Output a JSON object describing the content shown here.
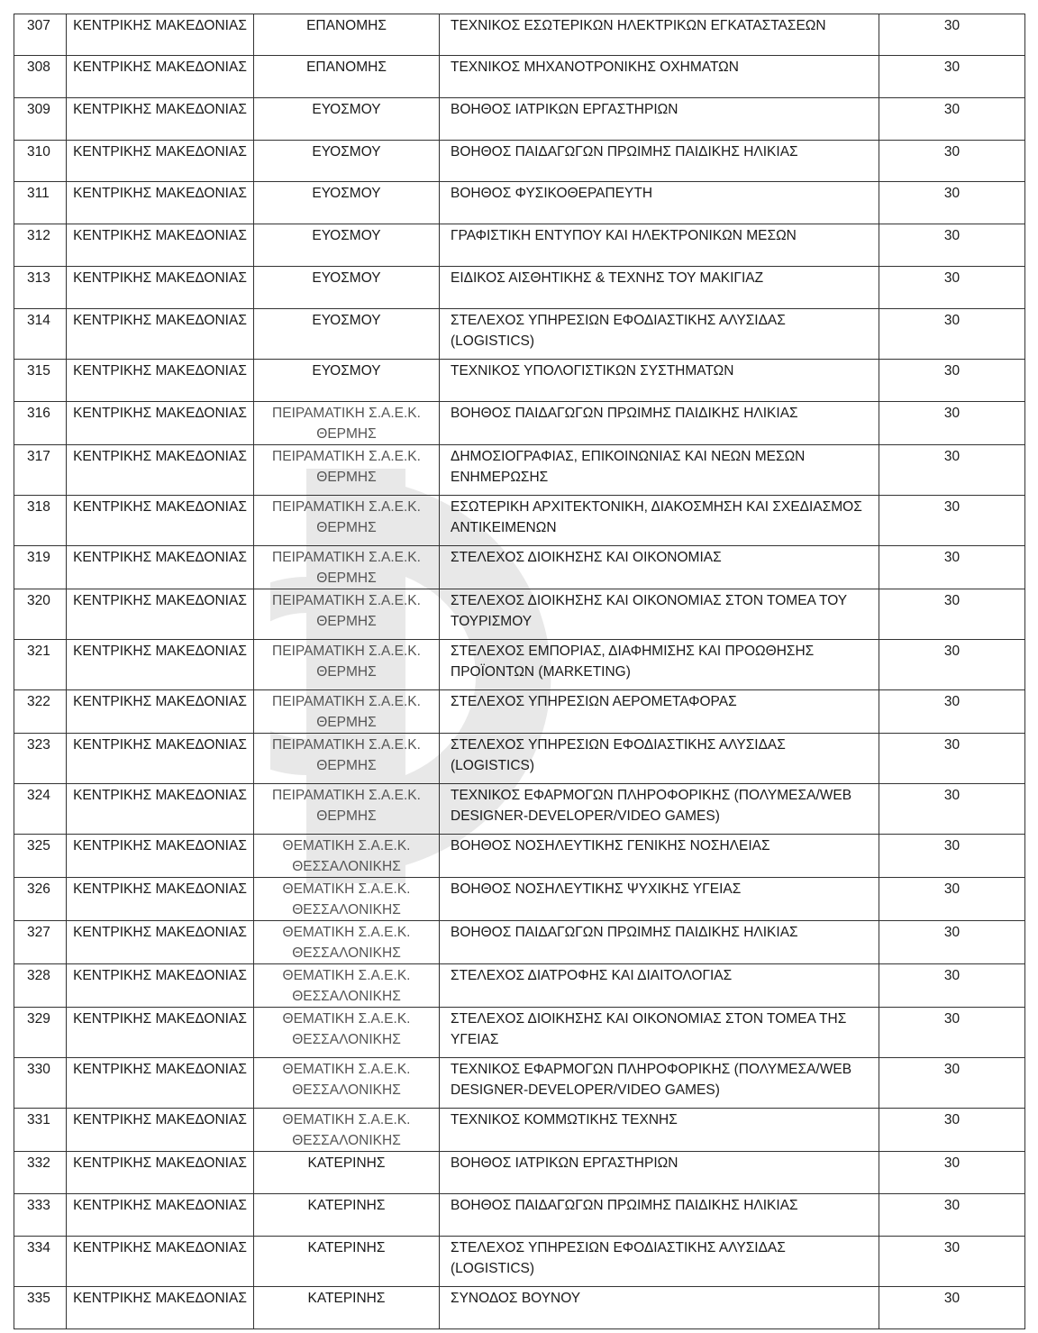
{
  "watermark": {
    "logo": "Φ",
    "color": "#9a9a9a"
  },
  "table": {
    "rows": [
      {
        "no": "307",
        "region": "ΚΕΝΤΡΙΚΗΣ ΜΑΚΕΔΟΝΙΑΣ",
        "school": "ΕΠΑΝΟΜΗΣ",
        "specialty": "ΤΕΧΝΙΚΟΣ ΕΣΩΤΕΡΙΚΩΝ ΗΛΕΚΤΡΙΚΩΝ ΕΓΚΑΤΑΣΤΑΣΕΩΝ",
        "seats": "30"
      },
      {
        "no": "308",
        "region": "ΚΕΝΤΡΙΚΗΣ ΜΑΚΕΔΟΝΙΑΣ",
        "school": "ΕΠΑΝΟΜΗΣ",
        "specialty": "ΤΕΧΝΙΚΟΣ ΜΗΧΑΝΟΤΡΟΝΙΚΗΣ ΟΧΗΜΑΤΩΝ",
        "seats": "30"
      },
      {
        "no": "309",
        "region": "ΚΕΝΤΡΙΚΗΣ ΜΑΚΕΔΟΝΙΑΣ",
        "school": "ΕΥΟΣΜΟΥ",
        "specialty": "ΒΟΗΘΟΣ ΙΑΤΡΙΚΩΝ ΕΡΓΑΣΤΗΡΙΩΝ",
        "seats": "30"
      },
      {
        "no": "310",
        "region": "ΚΕΝΤΡΙΚΗΣ ΜΑΚΕΔΟΝΙΑΣ",
        "school": "ΕΥΟΣΜΟΥ",
        "specialty": "ΒΟΗΘΟΣ ΠΑΙΔΑΓΩΓΩΝ ΠΡΩΙΜΗΣ ΠΑΙΔΙΚΗΣ ΗΛΙΚΙΑΣ",
        "seats": "30"
      },
      {
        "no": "311",
        "region": "ΚΕΝΤΡΙΚΗΣ ΜΑΚΕΔΟΝΙΑΣ",
        "school": "ΕΥΟΣΜΟΥ",
        "specialty": "ΒΟΗΘΟΣ ΦΥΣΙΚΟΘΕΡΑΠΕΥΤΗ",
        "seats": "30"
      },
      {
        "no": "312",
        "region": "ΚΕΝΤΡΙΚΗΣ ΜΑΚΕΔΟΝΙΑΣ",
        "school": "ΕΥΟΣΜΟΥ",
        "specialty": "ΓΡΑΦΙΣΤΙΚΗ ΕΝΤΥΠΟΥ ΚΑΙ ΗΛΕΚΤΡΟΝΙΚΩΝ ΜΕΣΩΝ",
        "seats": "30"
      },
      {
        "no": "313",
        "region": "ΚΕΝΤΡΙΚΗΣ ΜΑΚΕΔΟΝΙΑΣ",
        "school": "ΕΥΟΣΜΟΥ",
        "specialty": "ΕΙΔΙΚΟΣ ΑΙΣΘΗΤΙΚΗΣ & ΤΕΧΝΗΣ ΤΟΥ ΜΑΚΙΓΙΑΖ",
        "seats": "30"
      },
      {
        "no": "314",
        "region": "ΚΕΝΤΡΙΚΗΣ ΜΑΚΕΔΟΝΙΑΣ",
        "school": "ΕΥΟΣΜΟΥ",
        "specialty": "ΣΤΕΛΕΧΟΣ ΥΠΗΡΕΣΙΩΝ ΕΦΟΔΙΑΣΤΙΚΗΣ ΑΛΥΣΙΔΑΣ (LOGISTICS)",
        "seats": "30"
      },
      {
        "no": "315",
        "region": "ΚΕΝΤΡΙΚΗΣ ΜΑΚΕΔΟΝΙΑΣ",
        "school": "ΕΥΟΣΜΟΥ",
        "specialty": "ΤΕΧΝΙΚΟΣ ΥΠΟΛΟΓΙΣΤΙΚΩΝ ΣΥΣΤΗΜΑΤΩΝ",
        "seats": "30"
      },
      {
        "no": "316",
        "region": "ΚΕΝΤΡΙΚΗΣ ΜΑΚΕΔΟΝΙΑΣ",
        "school": "ΠΕΙΡΑΜΑΤΙΚΗ Σ.Α.Ε.Κ. ΘΕΡΜΗΣ",
        "specialty": "ΒΟΗΘΟΣ ΠΑΙΔΑΓΩΓΩΝ ΠΡΩΙΜΗΣ ΠΑΙΔΙΚΗΣ ΗΛΙΚΙΑΣ",
        "seats": "30"
      },
      {
        "no": "317",
        "region": "ΚΕΝΤΡΙΚΗΣ ΜΑΚΕΔΟΝΙΑΣ",
        "school": "ΠΕΙΡΑΜΑΤΙΚΗ Σ.Α.Ε.Κ. ΘΕΡΜΗΣ",
        "specialty": "ΔΗΜΟΣΙΟΓΡΑΦΙΑΣ, ΕΠΙΚΟΙΝΩΝΙΑΣ ΚΑΙ ΝΕΩΝ ΜΕΣΩΝ ΕΝΗΜΕΡΩΣΗΣ",
        "seats": "30"
      },
      {
        "no": "318",
        "region": "ΚΕΝΤΡΙΚΗΣ ΜΑΚΕΔΟΝΙΑΣ",
        "school": "ΠΕΙΡΑΜΑΤΙΚΗ Σ.Α.Ε.Κ. ΘΕΡΜΗΣ",
        "specialty": "ΕΣΩΤΕΡΙΚΗ ΑΡΧΙΤΕΚΤΟΝΙΚΗ, ΔΙΑΚΟΣΜΗΣΗ ΚΑΙ ΣΧΕΔΙΑΣΜΟΣ ΑΝΤΙΚΕΙΜΕΝΩΝ",
        "seats": "30"
      },
      {
        "no": "319",
        "region": "ΚΕΝΤΡΙΚΗΣ ΜΑΚΕΔΟΝΙΑΣ",
        "school": "ΠΕΙΡΑΜΑΤΙΚΗ Σ.Α.Ε.Κ. ΘΕΡΜΗΣ",
        "specialty": "ΣΤΕΛΕΧΟΣ ΔΙΟΙΚΗΣΗΣ ΚΑΙ ΟΙΚΟΝΟΜΙΑΣ",
        "seats": "30"
      },
      {
        "no": "320",
        "region": "ΚΕΝΤΡΙΚΗΣ ΜΑΚΕΔΟΝΙΑΣ",
        "school": "ΠΕΙΡΑΜΑΤΙΚΗ Σ.Α.Ε.Κ. ΘΕΡΜΗΣ",
        "specialty": "ΣΤΕΛΕΧΟΣ ΔΙΟΙΚΗΣΗΣ ΚΑΙ ΟΙΚΟΝΟΜΙΑΣ ΣΤΟΝ ΤΟΜΕΑ ΤΟΥ ΤΟΥΡΙΣΜΟΥ",
        "seats": "30"
      },
      {
        "no": "321",
        "region": "ΚΕΝΤΡΙΚΗΣ ΜΑΚΕΔΟΝΙΑΣ",
        "school": "ΠΕΙΡΑΜΑΤΙΚΗ Σ.Α.Ε.Κ. ΘΕΡΜΗΣ",
        "specialty": "ΣΤΕΛΕΧΟΣ ΕΜΠΟΡΙΑΣ, ΔΙΑΦΗΜΙΣΗΣ ΚΑΙ ΠΡΟΩΘΗΣΗΣ ΠΡΟΪΟΝΤΩΝ (MARKETING)",
        "seats": "30"
      },
      {
        "no": "322",
        "region": "ΚΕΝΤΡΙΚΗΣ ΜΑΚΕΔΟΝΙΑΣ",
        "school": "ΠΕΙΡΑΜΑΤΙΚΗ Σ.Α.Ε.Κ. ΘΕΡΜΗΣ",
        "specialty": "ΣΤΕΛΕΧΟΣ ΥΠΗΡΕΣΙΩΝ ΑΕΡΟΜΕΤΑΦΟΡΑΣ",
        "seats": "30"
      },
      {
        "no": "323",
        "region": "ΚΕΝΤΡΙΚΗΣ ΜΑΚΕΔΟΝΙΑΣ",
        "school": "ΠΕΙΡΑΜΑΤΙΚΗ Σ.Α.Ε.Κ. ΘΕΡΜΗΣ",
        "specialty": "ΣΤΕΛΕΧΟΣ ΥΠΗΡΕΣΙΩΝ ΕΦΟΔΙΑΣΤΙΚΗΣ ΑΛΥΣΙΔΑΣ (LOGISTICS)",
        "seats": "30"
      },
      {
        "no": "324",
        "region": "ΚΕΝΤΡΙΚΗΣ ΜΑΚΕΔΟΝΙΑΣ",
        "school": "ΠΕΙΡΑΜΑΤΙΚΗ Σ.Α.Ε.Κ. ΘΕΡΜΗΣ",
        "specialty": "ΤΕΧΝΙΚΟΣ ΕΦΑΡΜΟΓΩΝ ΠΛΗΡΟΦΟΡΙΚΗΣ (ΠΟΛΥΜΕΣΑ/WEB DESIGNER-DEVELOPER/VIDEO GAMES)",
        "seats": "30"
      },
      {
        "no": "325",
        "region": "ΚΕΝΤΡΙΚΗΣ ΜΑΚΕΔΟΝΙΑΣ",
        "school": "ΘΕΜΑΤΙΚΗ Σ.Α.Ε.Κ. ΘΕΣΣΑΛΟΝΙΚΗΣ",
        "specialty": "ΒΟΗΘΟΣ ΝΟΣΗΛΕΥΤΙΚΗΣ ΓΕΝΙΚΗΣ ΝΟΣΗΛΕΙΑΣ",
        "seats": "30"
      },
      {
        "no": "326",
        "region": "ΚΕΝΤΡΙΚΗΣ ΜΑΚΕΔΟΝΙΑΣ",
        "school": "ΘΕΜΑΤΙΚΗ Σ.Α.Ε.Κ. ΘΕΣΣΑΛΟΝΙΚΗΣ",
        "specialty": "ΒΟΗΘΟΣ ΝΟΣΗΛΕΥΤΙΚΗΣ ΨΥΧΙΚΗΣ ΥΓΕΙΑΣ",
        "seats": "30"
      },
      {
        "no": "327",
        "region": "ΚΕΝΤΡΙΚΗΣ ΜΑΚΕΔΟΝΙΑΣ",
        "school": "ΘΕΜΑΤΙΚΗ Σ.Α.Ε.Κ. ΘΕΣΣΑΛΟΝΙΚΗΣ",
        "specialty": "ΒΟΗΘΟΣ ΠΑΙΔΑΓΩΓΩΝ ΠΡΩΙΜΗΣ ΠΑΙΔΙΚΗΣ ΗΛΙΚΙΑΣ",
        "seats": "30"
      },
      {
        "no": "328",
        "region": "ΚΕΝΤΡΙΚΗΣ ΜΑΚΕΔΟΝΙΑΣ",
        "school": "ΘΕΜΑΤΙΚΗ Σ.Α.Ε.Κ. ΘΕΣΣΑΛΟΝΙΚΗΣ",
        "specialty": "ΣΤΕΛΕΧΟΣ ΔΙΑΤΡΟΦΗΣ ΚΑΙ ΔΙΑΙΤΟΛΟΓΙΑΣ",
        "seats": "30"
      },
      {
        "no": "329",
        "region": "ΚΕΝΤΡΙΚΗΣ ΜΑΚΕΔΟΝΙΑΣ",
        "school": "ΘΕΜΑΤΙΚΗ Σ.Α.Ε.Κ. ΘΕΣΣΑΛΟΝΙΚΗΣ",
        "specialty": "ΣΤΕΛΕΧΟΣ ΔΙΟΙΚΗΣΗΣ ΚΑΙ ΟΙΚΟΝΟΜΙΑΣ ΣΤΟΝ ΤΟΜΕΑ ΤΗΣ ΥΓΕΙΑΣ",
        "seats": "30"
      },
      {
        "no": "330",
        "region": "ΚΕΝΤΡΙΚΗΣ ΜΑΚΕΔΟΝΙΑΣ",
        "school": "ΘΕΜΑΤΙΚΗ Σ.Α.Ε.Κ. ΘΕΣΣΑΛΟΝΙΚΗΣ",
        "specialty": "ΤΕΧΝΙΚΟΣ ΕΦΑΡΜΟΓΩΝ ΠΛΗΡΟΦΟΡΙΚΗΣ (ΠΟΛΥΜΕΣΑ/WEB DESIGNER-DEVELOPER/VIDEO GAMES)",
        "seats": "30"
      },
      {
        "no": "331",
        "region": "ΚΕΝΤΡΙΚΗΣ ΜΑΚΕΔΟΝΙΑΣ",
        "school": "ΘΕΜΑΤΙΚΗ Σ.Α.Ε.Κ. ΘΕΣΣΑΛΟΝΙΚΗΣ",
        "specialty": "ΤΕΧΝΙΚΟΣ ΚΟΜΜΩΤΙΚΗΣ ΤΕΧΝΗΣ",
        "seats": "30"
      },
      {
        "no": "332",
        "region": "ΚΕΝΤΡΙΚΗΣ ΜΑΚΕΔΟΝΙΑΣ",
        "school": "ΚΑΤΕΡΙΝΗΣ",
        "specialty": "ΒΟΗΘΟΣ ΙΑΤΡΙΚΩΝ ΕΡΓΑΣΤΗΡΙΩΝ",
        "seats": "30"
      },
      {
        "no": "333",
        "region": "ΚΕΝΤΡΙΚΗΣ ΜΑΚΕΔΟΝΙΑΣ",
        "school": "ΚΑΤΕΡΙΝΗΣ",
        "specialty": "ΒΟΗΘΟΣ ΠΑΙΔΑΓΩΓΩΝ ΠΡΩΙΜΗΣ ΠΑΙΔΙΚΗΣ ΗΛΙΚΙΑΣ",
        "seats": "30"
      },
      {
        "no": "334",
        "region": "ΚΕΝΤΡΙΚΗΣ ΜΑΚΕΔΟΝΙΑΣ",
        "school": "ΚΑΤΕΡΙΝΗΣ",
        "specialty": "ΣΤΕΛΕΧΟΣ ΥΠΗΡΕΣΙΩΝ ΕΦΟΔΙΑΣΤΙΚΗΣ ΑΛΥΣΙΔΑΣ (LOGISTICS)",
        "seats": "30"
      },
      {
        "no": "335",
        "region": "ΚΕΝΤΡΙΚΗΣ ΜΑΚΕΔΟΝΙΑΣ",
        "school": "ΚΑΤΕΡΙΝΗΣ",
        "specialty": "ΣΥΝΟΔΟΣ ΒΟΥΝΟΥ",
        "seats": "30"
      }
    ]
  }
}
